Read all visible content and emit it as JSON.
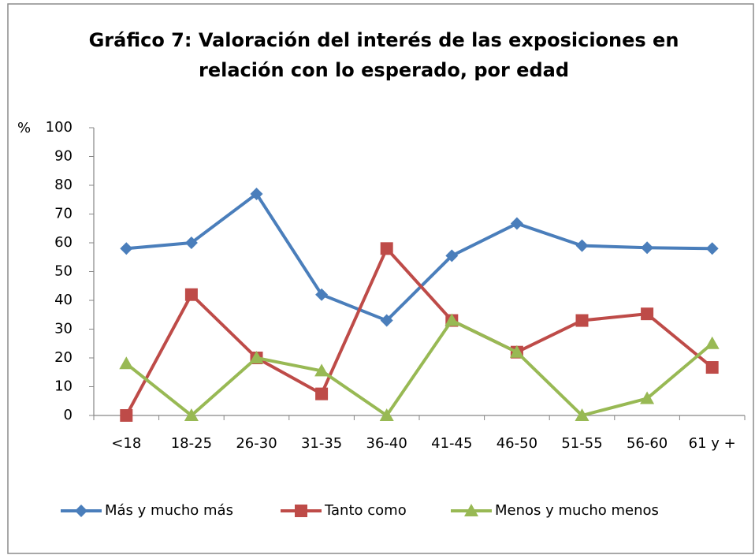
{
  "chart_data": {
    "type": "line",
    "title": [
      "Gráfico 7: Valoración del interés de las exposiciones en",
      "relación con lo esperado, por edad"
    ],
    "y_label": "%",
    "categories": [
      "<18",
      "18-25",
      "26-30",
      "31-35",
      "36-40",
      "41-45",
      "46-50",
      "51-55",
      "56-60",
      "61 y +"
    ],
    "series": [
      {
        "name": "Más y mucho más",
        "color": "#4a7ebb",
        "marker": "diamond",
        "values": [
          58,
          60,
          77,
          42,
          33,
          55.5,
          66.7,
          59,
          58.3,
          58
        ]
      },
      {
        "name": "Tanto como",
        "color": "#be4b48",
        "marker": "square",
        "values": [
          0,
          42,
          20,
          7.5,
          58,
          33,
          22,
          33,
          35.3,
          16.7
        ]
      },
      {
        "name": "Menos y mucho menos",
        "color": "#98b954",
        "marker": "triangle",
        "values": [
          18,
          0,
          20,
          15.5,
          0,
          33,
          22,
          0,
          5.9,
          25
        ]
      }
    ],
    "ylim": [
      0,
      100
    ],
    "yticks": [
      0,
      10,
      20,
      30,
      40,
      50,
      60,
      70,
      80,
      90,
      100
    ],
    "grid": false,
    "legend": "bottom"
  }
}
